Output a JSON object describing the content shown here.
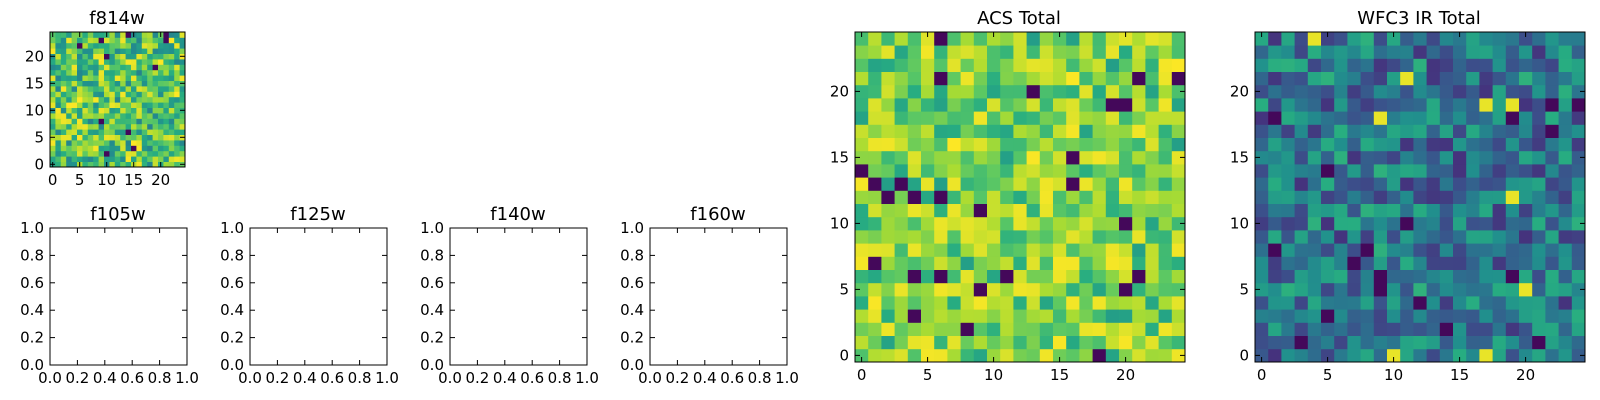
{
  "chart_data": [
    {
      "type": "heatmap",
      "title": "f814w",
      "xlim": [
        -0.5,
        24.5
      ],
      "ylim": [
        -0.5,
        24.5
      ],
      "xticks": [
        0,
        5,
        10,
        15,
        20
      ],
      "yticks": [
        0,
        5,
        10,
        15,
        20
      ],
      "colormap": "viridis",
      "grid_size": [
        25,
        25
      ],
      "seed": 11,
      "value_range": [
        0,
        1
      ]
    },
    {
      "type": "empty",
      "title": "f105w",
      "xlim": [
        0,
        1
      ],
      "ylim": [
        0,
        1
      ],
      "xticks": [
        "0.0",
        "0.2",
        "0.4",
        "0.6",
        "0.8",
        "1.0"
      ],
      "yticks": [
        "0.0",
        "0.2",
        "0.4",
        "0.6",
        "0.8",
        "1.0"
      ]
    },
    {
      "type": "empty",
      "title": "f125w",
      "xlim": [
        0,
        1
      ],
      "ylim": [
        0,
        1
      ],
      "xticks": [
        "0.0",
        "0.2",
        "0.4",
        "0.6",
        "0.8",
        "1.0"
      ],
      "yticks": [
        "0.0",
        "0.2",
        "0.4",
        "0.6",
        "0.8",
        "1.0"
      ]
    },
    {
      "type": "empty",
      "title": "f140w",
      "xlim": [
        0,
        1
      ],
      "ylim": [
        0,
        1
      ],
      "xticks": [
        "0.0",
        "0.2",
        "0.4",
        "0.6",
        "0.8",
        "1.0"
      ],
      "yticks": [
        "0.0",
        "0.2",
        "0.4",
        "0.6",
        "0.8",
        "1.0"
      ]
    },
    {
      "type": "empty",
      "title": "f160w",
      "xlim": [
        0,
        1
      ],
      "ylim": [
        0,
        1
      ],
      "xticks": [
        "0.0",
        "0.2",
        "0.4",
        "0.6",
        "0.8",
        "1.0"
      ],
      "yticks": [
        "0.0",
        "0.2",
        "0.4",
        "0.6",
        "0.8",
        "1.0"
      ]
    },
    {
      "type": "heatmap",
      "title": "ACS Total",
      "xlim": [
        -0.5,
        24.5
      ],
      "ylim": [
        -0.5,
        24.5
      ],
      "xticks": [
        0,
        5,
        10,
        15,
        20
      ],
      "yticks": [
        0,
        5,
        10,
        15,
        20
      ],
      "colormap": "viridis",
      "grid_size": [
        25,
        25
      ],
      "seed": 29,
      "value_range": [
        0,
        1
      ]
    },
    {
      "type": "heatmap",
      "title": "WFC3 IR Total",
      "xlim": [
        -0.5,
        24.5
      ],
      "ylim": [
        -0.5,
        24.5
      ],
      "xticks": [
        0,
        5,
        10,
        15,
        20
      ],
      "yticks": [
        0,
        5,
        10,
        15,
        20
      ],
      "colormap": "viridis",
      "grid_size": [
        25,
        25
      ],
      "seed": 47,
      "value_range": [
        0,
        1
      ]
    }
  ]
}
